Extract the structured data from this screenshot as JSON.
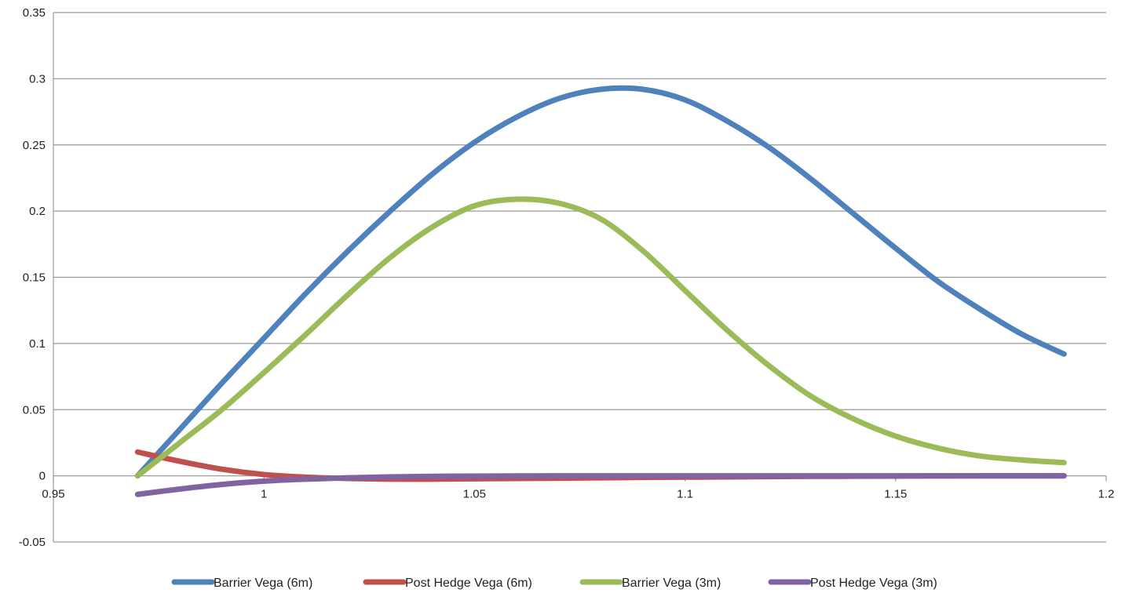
{
  "chart_data": {
    "type": "line",
    "title": "",
    "xlabel": "",
    "ylabel": "",
    "xlim": [
      0.95,
      1.2
    ],
    "ylim": [
      -0.05,
      0.35
    ],
    "x_ticks": [
      0.95,
      1,
      1.05,
      1.1,
      1.15,
      1.2
    ],
    "x_tick_labels": [
      "0.95",
      "1",
      "1.05",
      "1.1",
      "1.15",
      "1.2"
    ],
    "y_ticks": [
      -0.05,
      0,
      0.05,
      0.1,
      0.15,
      0.2,
      0.25,
      0.3,
      0.35
    ],
    "y_tick_labels": [
      "-0.05",
      "0",
      "0.05",
      "0.1",
      "0.15",
      "0.2",
      "0.25",
      "0.3",
      "0.35"
    ],
    "grid": "horizontal",
    "legend_position": "bottom",
    "x": [
      0.97,
      0.98,
      0.99,
      1.0,
      1.01,
      1.02,
      1.03,
      1.04,
      1.05,
      1.06,
      1.07,
      1.08,
      1.09,
      1.1,
      1.11,
      1.12,
      1.13,
      1.14,
      1.15,
      1.16,
      1.17,
      1.18,
      1.19
    ],
    "series": [
      {
        "name": "Barrier Vega (6m)",
        "color": "#4f81bd",
        "values": [
          0.0,
          0.035,
          0.07,
          0.104,
          0.138,
          0.17,
          0.2,
          0.228,
          0.252,
          0.271,
          0.285,
          0.292,
          0.292,
          0.284,
          0.268,
          0.248,
          0.224,
          0.198,
          0.172,
          0.147,
          0.126,
          0.107,
          0.092
        ]
      },
      {
        "name": "Post Hedge Vega (6m)",
        "color": "#c0504d",
        "values": [
          0.018,
          0.011,
          0.005,
          0.001,
          -0.001,
          -0.002,
          -0.0025,
          -0.0025,
          -0.0022,
          -0.002,
          -0.0018,
          -0.0015,
          -0.0012,
          -0.001,
          -0.0008,
          -0.0006,
          -0.0004,
          -0.0003,
          -0.0002,
          -0.0001,
          0.0,
          0.0,
          0.0
        ]
      },
      {
        "name": "Barrier Vega (3m)",
        "color": "#9bbb59",
        "values": [
          0.0,
          0.025,
          0.05,
          0.078,
          0.107,
          0.137,
          0.165,
          0.188,
          0.204,
          0.209,
          0.206,
          0.194,
          0.17,
          0.14,
          0.11,
          0.083,
          0.06,
          0.043,
          0.03,
          0.021,
          0.015,
          0.012,
          0.01
        ]
      },
      {
        "name": "Post Hedge Vega (3m)",
        "color": "#8064a2",
        "values": [
          -0.014,
          -0.01,
          -0.0065,
          -0.004,
          -0.0025,
          -0.0015,
          -0.0008,
          -0.0004,
          -0.0002,
          -0.0001,
          0.0,
          0.0,
          0.0,
          0.0,
          0.0,
          0.0,
          0.0,
          0.0,
          0.0,
          0.0,
          0.0,
          0.0,
          0.0
        ]
      }
    ]
  }
}
